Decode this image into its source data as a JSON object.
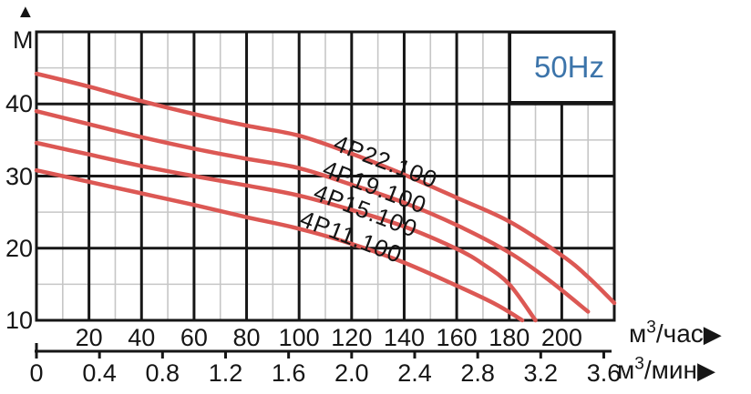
{
  "chart_data": {
    "type": "line",
    "frequency_label": "50Hz",
    "frequency_color": "#3c74aa",
    "series_color": "#dc5854",
    "grid": {
      "x_major_step": 20,
      "x_minor_step": 10,
      "y_major_step": 10,
      "y_minor_step": 5,
      "major_color": "#161616",
      "minor_color": "#c6c6c6"
    },
    "y_axis": {
      "unit": "М",
      "arrow_up": "▲",
      "range": [
        10,
        50
      ],
      "tick_values": [
        40,
        30,
        20,
        10
      ],
      "tick_labels": [
        "40",
        "30",
        "20",
        "10"
      ]
    },
    "x_axis_hour": {
      "unit": "м³/час",
      "arrow": "▶",
      "range": [
        0,
        220
      ],
      "tick_values": [
        20,
        40,
        60,
        80,
        100,
        120,
        140,
        160,
        180,
        200
      ],
      "tick_labels": [
        "20",
        "40",
        "60",
        "80",
        "100",
        "120",
        "140",
        "160",
        "180",
        "200"
      ]
    },
    "x_axis_min": {
      "unit": "м³/мин",
      "arrow": "▶",
      "range": [
        0,
        3.6
      ],
      "hour_per_min": 60,
      "tick_values": [
        0,
        0.4,
        0.8,
        1.2,
        1.6,
        2.0,
        2.4,
        2.8,
        3.2,
        3.6
      ],
      "tick_labels": [
        "0",
        "0.4",
        "0.8",
        "1.2",
        "1.6",
        "2.0",
        "2.4",
        "2.8",
        "3.2",
        "3.6"
      ]
    },
    "series": [
      {
        "name": "4P22.100",
        "points": [
          [
            0,
            44.2
          ],
          [
            20,
            42.4
          ],
          [
            40,
            40.4
          ],
          [
            60,
            38.6
          ],
          [
            80,
            37.0
          ],
          [
            100,
            35.6
          ],
          [
            120,
            33.1
          ],
          [
            140,
            30.2
          ],
          [
            160,
            27.0
          ],
          [
            180,
            23.7
          ],
          [
            200,
            19.0
          ],
          [
            210,
            16.0
          ],
          [
            220,
            12.4
          ]
        ]
      },
      {
        "name": "4P19.100",
        "points": [
          [
            0,
            39.0
          ],
          [
            20,
            37.2
          ],
          [
            40,
            35.4
          ],
          [
            60,
            33.8
          ],
          [
            80,
            32.4
          ],
          [
            100,
            31.1
          ],
          [
            120,
            28.8
          ],
          [
            140,
            26.3
          ],
          [
            160,
            23.2
          ],
          [
            180,
            19.4
          ],
          [
            195,
            15.6
          ],
          [
            210,
            11.2
          ]
        ]
      },
      {
        "name": "4P15.100",
        "points": [
          [
            0,
            34.6
          ],
          [
            20,
            33.0
          ],
          [
            40,
            31.4
          ],
          [
            60,
            30.0
          ],
          [
            80,
            28.7
          ],
          [
            100,
            27.3
          ],
          [
            120,
            25.3
          ],
          [
            140,
            23.0
          ],
          [
            160,
            19.9
          ],
          [
            170,
            17.8
          ],
          [
            180,
            15.0
          ],
          [
            190,
            10.0
          ]
        ]
      },
      {
        "name": "4P11.100",
        "points": [
          [
            0,
            30.8
          ],
          [
            20,
            29.2
          ],
          [
            40,
            27.6
          ],
          [
            60,
            26.0
          ],
          [
            80,
            24.3
          ],
          [
            100,
            22.7
          ],
          [
            120,
            20.6
          ],
          [
            140,
            18.0
          ],
          [
            160,
            14.8
          ],
          [
            175,
            12.2
          ],
          [
            185,
            10.0
          ]
        ]
      }
    ]
  }
}
